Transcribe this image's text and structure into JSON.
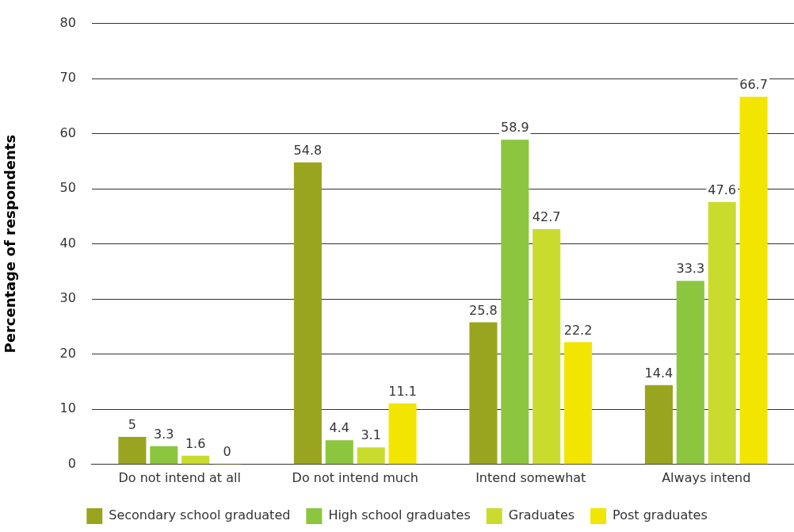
{
  "chart_data": {
    "type": "bar",
    "ylabel": "Percentage of respondents",
    "categories": [
      "Do not intend at all",
      "Do not intend much",
      "Intend somewhat",
      "Always intend"
    ],
    "series": [
      {
        "name": "Secondary school graduated",
        "color": "#9aa51f",
        "values": [
          5,
          54.8,
          25.8,
          14.4
        ]
      },
      {
        "name": "High school graduates",
        "color": "#8cc63f",
        "values": [
          3.3,
          4.4,
          58.9,
          33.3
        ]
      },
      {
        "name": "Graduates",
        "color": "#c9dc2e",
        "values": [
          1.6,
          3.1,
          42.7,
          47.6
        ]
      },
      {
        "name": "Post graduates",
        "color": "#f2e500",
        "values": [
          0,
          11.1,
          22.2,
          66.7
        ]
      }
    ],
    "ylim": [
      0,
      80
    ],
    "yticks": [
      0,
      10,
      20,
      30,
      40,
      50,
      60,
      70,
      80
    ],
    "grid": "y",
    "legend": "bottom",
    "data_labels": true
  }
}
